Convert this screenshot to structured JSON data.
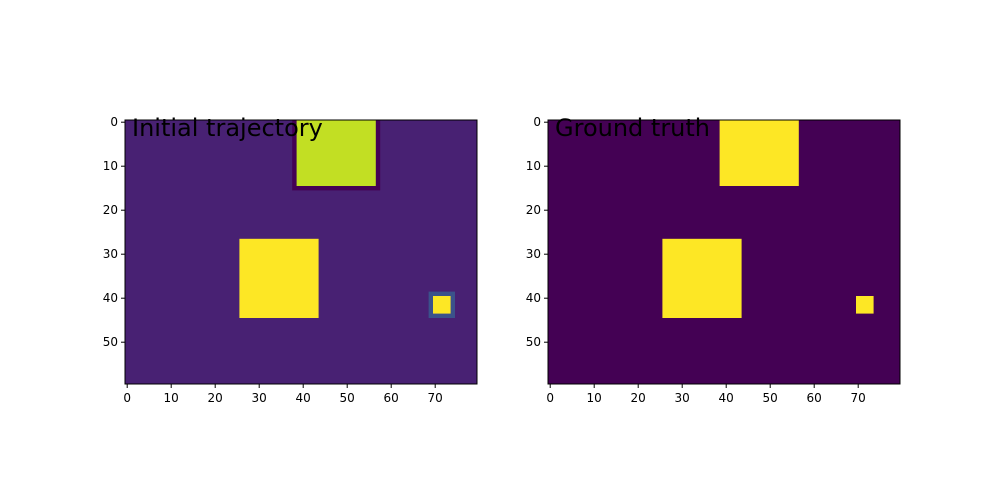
{
  "chart_data": [
    {
      "type": "heatmap",
      "title": "Initial trajectory",
      "grid_shape": [
        60,
        80
      ],
      "xlim": [
        -0.5,
        79.5
      ],
      "ylim": [
        59.5,
        -0.5
      ],
      "xticks": [
        0,
        10,
        20,
        30,
        40,
        50,
        60,
        70
      ],
      "yticks": [
        0,
        10,
        20,
        30,
        40,
        50
      ],
      "grid": false,
      "colormap": "viridis",
      "background_value": 0.05,
      "background_color": "#482173",
      "regions": [
        {
          "rows": [
            -1,
            15
          ],
          "cols": [
            38,
            57
          ],
          "value": 0.0,
          "color": "#440154"
        },
        {
          "rows": [
            0,
            14
          ],
          "cols": [
            39,
            56
          ],
          "value": 0.88,
          "color": "#c2df23"
        },
        {
          "rows": [
            27,
            44
          ],
          "cols": [
            26,
            43
          ],
          "value": 1.0,
          "color": "#fde725"
        },
        {
          "rows": [
            39,
            44
          ],
          "cols": [
            69,
            74
          ],
          "value": 0.22,
          "color": "#3b528b"
        },
        {
          "rows": [
            40,
            43
          ],
          "cols": [
            70,
            73
          ],
          "value": 1.0,
          "color": "#fde725"
        }
      ]
    },
    {
      "type": "heatmap",
      "title": "Ground truth",
      "grid_shape": [
        60,
        80
      ],
      "xlim": [
        -0.5,
        79.5
      ],
      "ylim": [
        59.5,
        -0.5
      ],
      "xticks": [
        0,
        10,
        20,
        30,
        40,
        50,
        60,
        70
      ],
      "yticks": [
        0,
        10,
        20,
        30,
        40,
        50
      ],
      "grid": false,
      "colormap": "viridis",
      "background_value": 0.0,
      "background_color": "#440154",
      "regions": [
        {
          "rows": [
            0,
            14
          ],
          "cols": [
            39,
            56
          ],
          "value": 1.0,
          "color": "#fde725"
        },
        {
          "rows": [
            27,
            44
          ],
          "cols": [
            26,
            43
          ],
          "value": 1.0,
          "color": "#fde725"
        },
        {
          "rows": [
            40,
            43
          ],
          "cols": [
            70,
            73
          ],
          "value": 1.0,
          "color": "#fde725"
        }
      ]
    }
  ]
}
